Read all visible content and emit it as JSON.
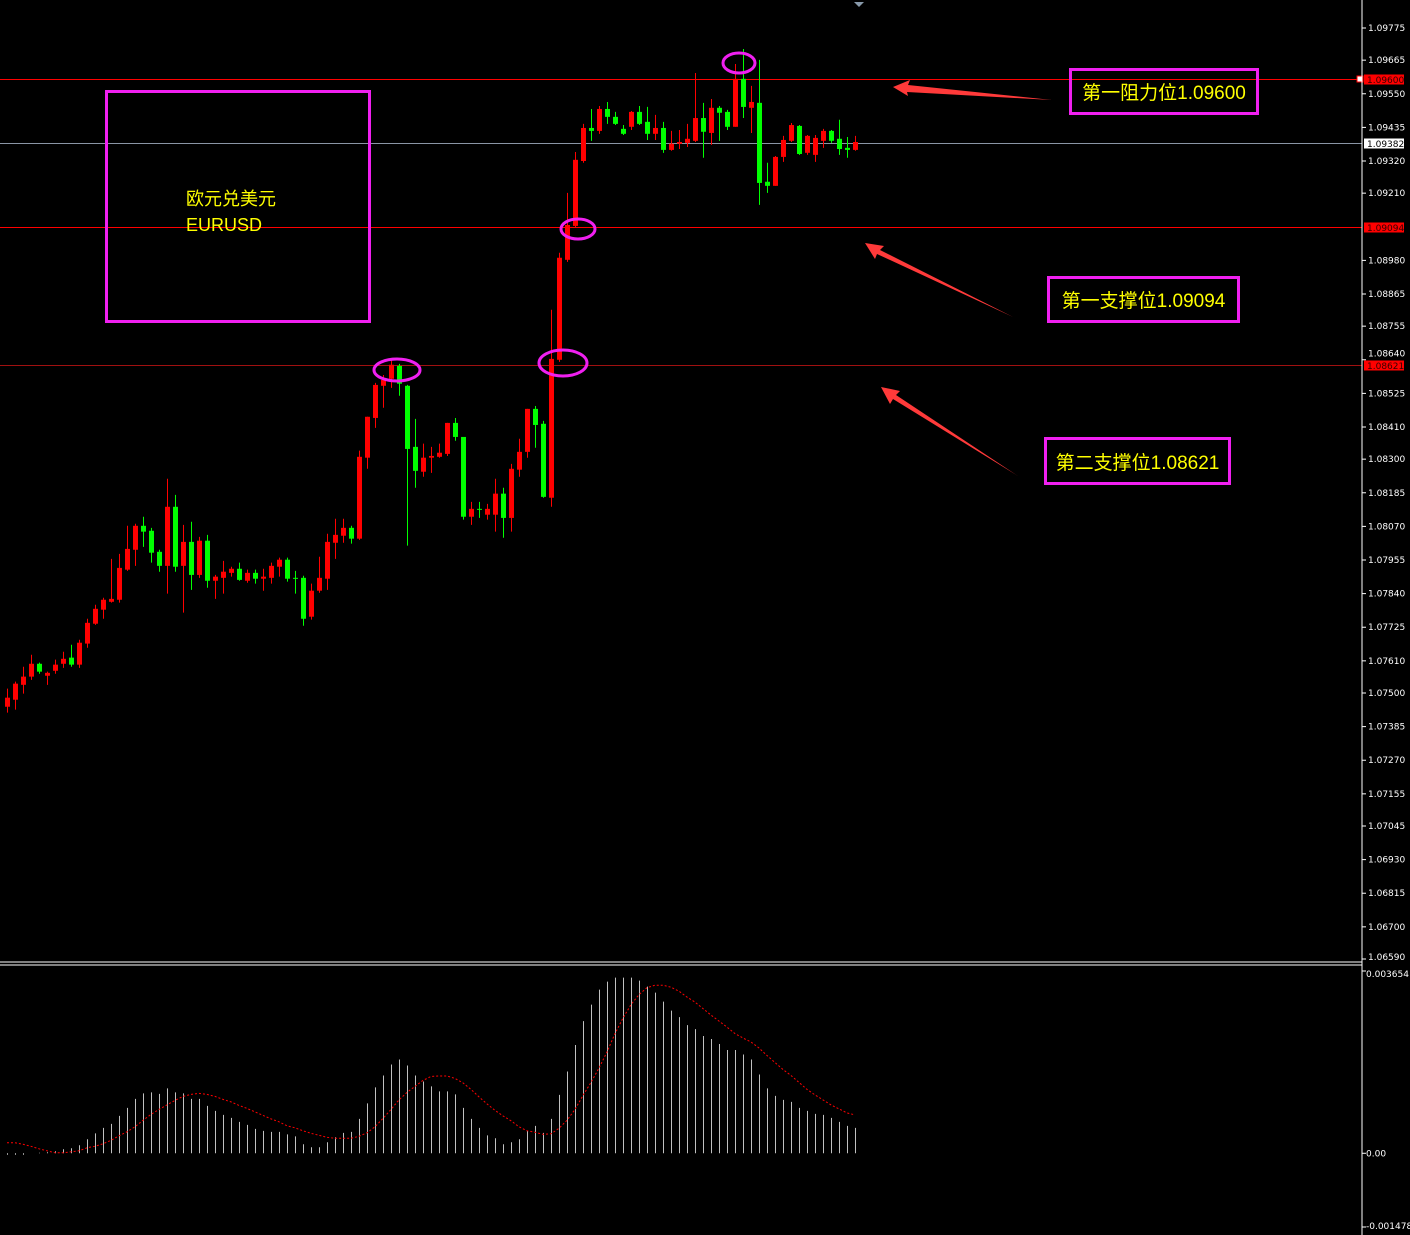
{
  "symbol": {
    "name_cn": "欧元兑美元",
    "name": "EURUSD"
  },
  "annotations": [
    {
      "text": "第一阻力位1.09600",
      "level": 1.096
    },
    {
      "text": "第一支撑位1.09094",
      "level": 1.09094
    },
    {
      "text": "第二支撑位1.08621",
      "level": 1.08621
    }
  ],
  "price_lines": {
    "bid": {
      "label": "1.09382",
      "value": 1.09382
    },
    "resistance1": {
      "label": "1.09600",
      "value": 1.096
    },
    "support1": {
      "label": "1.09094",
      "value": 1.09094
    },
    "support2": {
      "label": "1.08621",
      "value": 1.08621
    }
  },
  "colors": {
    "up": "#ff0000",
    "down": "#00ff00",
    "background": "#000000",
    "annotation_box": "#f020f0",
    "annotation_text": "#ffff00",
    "arrow": "#ff3a3a",
    "macd_hist": "#c0c0c0",
    "macd_signal": "#ff0000"
  },
  "chart_data": [
    {
      "type": "candlestick",
      "ylim": [
        1.0659,
        1.09775
      ],
      "y_ticks": [
        "1.09775",
        "1.09665",
        "1.09550",
        "1.09435",
        "1.09320",
        "1.09210",
        "1.08980",
        "1.08865",
        "1.08755",
        "1.08640",
        "1.08525",
        "1.08410",
        "1.08300",
        "1.08185",
        "1.08070",
        "1.07955",
        "1.07840",
        "1.07725",
        "1.07610",
        "1.07500",
        "1.07385",
        "1.07270",
        "1.07155",
        "1.07045",
        "1.06930",
        "1.06815",
        "1.06700",
        "1.06590"
      ],
      "y_tick_values": [
        1.09775,
        1.09665,
        1.0955,
        1.09435,
        1.0932,
        1.0921,
        1.0898,
        1.08865,
        1.08755,
        1.0864,
        1.08525,
        1.0841,
        1.083,
        1.08185,
        1.0807,
        1.07955,
        1.0784,
        1.07725,
        1.0761,
        1.075,
        1.07385,
        1.0727,
        1.07155,
        1.07045,
        1.0693,
        1.06815,
        1.067,
        1.0659
      ],
      "ohlc": [
        [
          1.07453,
          1.07515,
          1.07433,
          1.07484
        ],
        [
          1.07477,
          1.07539,
          1.07443,
          1.07532
        ],
        [
          1.07528,
          1.0759,
          1.07498,
          1.07556
        ],
        [
          1.07556,
          1.07631,
          1.07545,
          1.076
        ],
        [
          1.076,
          1.07604,
          1.07566,
          1.07573
        ],
        [
          1.07559,
          1.07573,
          1.07528,
          1.07569
        ],
        [
          1.07576,
          1.07614,
          1.07566,
          1.07597
        ],
        [
          1.076,
          1.07641,
          1.07586,
          1.07617
        ],
        [
          1.07621,
          1.07665,
          1.0759,
          1.07597
        ],
        [
          1.07597,
          1.07682,
          1.07586,
          1.07672
        ],
        [
          1.07669,
          1.07754,
          1.07655,
          1.0774
        ],
        [
          1.07737,
          1.07802,
          1.07733,
          1.07788
        ],
        [
          1.07785,
          1.07826,
          1.07754,
          1.07819
        ],
        [
          1.07812,
          1.07959,
          1.07809,
          1.07822
        ],
        [
          1.07819,
          1.07976,
          1.07809,
          1.07928
        ],
        [
          1.07922,
          1.08072,
          1.07918,
          1.07993
        ],
        [
          1.0799,
          1.08079,
          1.07935,
          1.08072
        ],
        [
          1.08072,
          1.08103,
          1.08,
          1.08052
        ],
        [
          1.08055,
          1.08065,
          1.07946,
          1.0798
        ],
        [
          1.07983,
          1.0799,
          1.07915,
          1.07935
        ],
        [
          1.07935,
          1.08233,
          1.0784,
          1.08137
        ],
        [
          1.08137,
          1.08178,
          1.07915,
          1.07932
        ],
        [
          1.07935,
          1.08075,
          1.07775,
          1.08017
        ],
        [
          1.08017,
          1.08086,
          1.07853,
          1.07904
        ],
        [
          1.07904,
          1.08034,
          1.07894,
          1.08021
        ],
        [
          1.08021,
          1.08041,
          1.0786,
          1.07884
        ],
        [
          1.07884,
          1.07904,
          1.07822,
          1.07898
        ],
        [
          1.07894,
          1.07952,
          1.0784,
          1.07915
        ],
        [
          1.07911,
          1.07932,
          1.07898,
          1.07925
        ],
        [
          1.07925,
          1.07946,
          1.07884,
          1.07887
        ],
        [
          1.07884,
          1.07922,
          1.07877,
          1.07911
        ],
        [
          1.07911,
          1.07922,
          1.07874,
          1.07891
        ],
        [
          1.07891,
          1.07925,
          1.0785,
          1.07898
        ],
        [
          1.07894,
          1.07946,
          1.07874,
          1.07935
        ],
        [
          1.07932,
          1.07963,
          1.07898,
          1.07956
        ],
        [
          1.07956,
          1.07963,
          1.07881,
          1.07891
        ],
        [
          1.07894,
          1.07918,
          1.0784,
          1.07891
        ],
        [
          1.07894,
          1.07901,
          1.0773,
          1.07754
        ],
        [
          1.07761,
          1.07874,
          1.07751,
          1.0785
        ],
        [
          1.0785,
          1.07966,
          1.07843,
          1.07894
        ],
        [
          1.07891,
          1.08045,
          1.07853,
          1.08017
        ],
        [
          1.08014,
          1.08096,
          1.07959,
          1.08041
        ],
        [
          1.08038,
          1.08096,
          1.08014,
          1.08065
        ],
        [
          1.08065,
          1.08072,
          1.08011,
          1.08028
        ],
        [
          1.08028,
          1.08329,
          1.08024,
          1.08308
        ],
        [
          1.08305,
          1.08445,
          1.08267,
          1.08445
        ],
        [
          1.08441,
          1.08561,
          1.08407,
          1.08554
        ],
        [
          1.08551,
          1.08588,
          1.08476,
          1.08571
        ],
        [
          1.08575,
          1.0864,
          1.08544,
          1.08623
        ],
        [
          1.08619,
          1.08626,
          1.08517,
          1.08558
        ],
        [
          1.08551,
          1.08554,
          1.08004,
          1.08335
        ],
        [
          1.08342,
          1.08438,
          1.08202,
          1.0826
        ],
        [
          1.08257,
          1.08353,
          1.0824,
          1.08305
        ],
        [
          1.08305,
          1.08342,
          1.08253,
          1.08311
        ],
        [
          1.08308,
          1.08353,
          1.08305,
          1.08322
        ],
        [
          1.08318,
          1.08424,
          1.08311,
          1.08424
        ],
        [
          1.08424,
          1.08441,
          1.08363,
          1.08376
        ],
        [
          1.08376,
          1.08376,
          1.08093,
          1.08103
        ],
        [
          1.08103,
          1.08154,
          1.08075,
          1.0813
        ],
        [
          1.0813,
          1.08154,
          1.08099,
          1.08127
        ],
        [
          1.0811,
          1.08147,
          1.08093,
          1.0813
        ],
        [
          1.0811,
          1.08233,
          1.08052,
          1.08182
        ],
        [
          1.08182,
          1.08202,
          1.08031,
          1.08099
        ],
        [
          1.08099,
          1.08284,
          1.08052,
          1.08267
        ],
        [
          1.08264,
          1.0837,
          1.0824,
          1.08325
        ],
        [
          1.08325,
          1.08472,
          1.08305,
          1.08472
        ],
        [
          1.08472,
          1.08482,
          1.08339,
          1.08417
        ],
        [
          1.08421,
          1.08431,
          1.08168,
          1.08171
        ],
        [
          1.08168,
          1.08811,
          1.08137,
          1.08643
        ],
        [
          1.0864,
          1.09006,
          1.08633,
          1.08989
        ],
        [
          1.08982,
          1.09211,
          1.08975,
          1.09101
        ],
        [
          1.09098,
          1.09351,
          1.09091,
          1.09324
        ],
        [
          1.0932,
          1.09447,
          1.09314,
          1.09433
        ],
        [
          1.09433,
          1.09498,
          1.09389,
          1.09423
        ],
        [
          1.09423,
          1.09508,
          1.09413,
          1.09498
        ],
        [
          1.09498,
          1.09522,
          1.09447,
          1.09471
        ],
        [
          1.09471,
          1.09488,
          1.09443,
          1.09447
        ],
        [
          1.0943,
          1.09443,
          1.09409,
          1.09413
        ],
        [
          1.09437,
          1.09491,
          1.09426,
          1.09488
        ],
        [
          1.09488,
          1.09508,
          1.09443,
          1.09447
        ],
        [
          1.09454,
          1.09505,
          1.09392,
          1.09413
        ],
        [
          1.09413,
          1.09478,
          1.09392,
          1.09433
        ],
        [
          1.09433,
          1.09454,
          1.09348,
          1.09358
        ],
        [
          1.09358,
          1.09423,
          1.09355,
          1.09379
        ],
        [
          1.09379,
          1.09426,
          1.09361,
          1.09385
        ],
        [
          1.09382,
          1.09447,
          1.09368,
          1.09396
        ],
        [
          1.09389,
          1.09621,
          1.09385,
          1.09467
        ],
        [
          1.09467,
          1.09519,
          1.09331,
          1.0942
        ],
        [
          1.09416,
          1.09532,
          1.09375,
          1.09502
        ],
        [
          1.09502,
          1.09508,
          1.09389,
          1.09485
        ],
        [
          1.09488,
          1.09495,
          1.09426,
          1.09437
        ],
        [
          1.09437,
          1.09652,
          1.09437,
          1.09601
        ],
        [
          1.09601,
          1.09703,
          1.09467,
          1.09505
        ],
        [
          1.09502,
          1.09577,
          1.09416,
          1.09522
        ],
        [
          1.09519,
          1.09666,
          1.0917,
          1.09245
        ],
        [
          1.09249,
          1.09314,
          1.09211,
          1.09235
        ],
        [
          1.09235,
          1.09337,
          1.09235,
          1.09334
        ],
        [
          1.09334,
          1.09406,
          1.09317,
          1.09392
        ],
        [
          1.09389,
          1.0945,
          1.09385,
          1.09443
        ],
        [
          1.0944,
          1.09443,
          1.09341,
          1.09344
        ],
        [
          1.09348,
          1.09409,
          1.09341,
          1.09406
        ],
        [
          1.09341,
          1.09409,
          1.09317,
          1.09399
        ],
        [
          1.09389,
          1.0943,
          1.09365,
          1.09423
        ],
        [
          1.09423,
          1.09426,
          1.09382,
          1.09389
        ],
        [
          1.09396,
          1.09461,
          1.09341,
          1.09361
        ],
        [
          1.09365,
          1.09402,
          1.09331,
          1.09358
        ],
        [
          1.09358,
          1.09406,
          1.09355,
          1.09385
        ]
      ]
    },
    {
      "type": "bar+line",
      "ylim": [
        -0.001478,
        0.003654
      ],
      "y_ticks": [
        "0.003654",
        "0.00",
        "-0.001478"
      ],
      "histogram": [
        -3e-05,
        -3e-05,
        -3e-05,
        0.0,
        1e-05,
        2e-05,
        4e-05,
        8e-05,
        0.0001,
        0.00016,
        0.00028,
        0.0004,
        0.00051,
        0.00059,
        0.00075,
        0.00091,
        0.00109,
        0.0012,
        0.00122,
        0.00119,
        0.0013,
        0.00122,
        0.0012,
        0.00109,
        0.00109,
        0.00095,
        0.00085,
        0.00077,
        0.00071,
        0.00063,
        0.00057,
        0.00049,
        0.00045,
        0.00043,
        0.00043,
        0.00038,
        0.00034,
        0.00018,
        0.00012,
        0.00012,
        0.00022,
        0.00032,
        0.00041,
        0.00043,
        0.00069,
        0.001,
        0.00132,
        0.00156,
        0.00178,
        0.00188,
        0.00176,
        0.00156,
        0.00144,
        0.00134,
        0.00124,
        0.00124,
        0.00118,
        0.00091,
        0.00069,
        0.00051,
        0.00036,
        0.0003,
        0.00018,
        0.00022,
        0.00028,
        0.00045,
        0.00055,
        0.00041,
        0.00069,
        0.00117,
        0.00164,
        0.00217,
        0.00265,
        0.00298,
        0.00328,
        0.00344,
        0.00352,
        0.00352,
        0.00352,
        0.00346,
        0.00334,
        0.00322,
        0.00304,
        0.00286,
        0.00273,
        0.00257,
        0.00249,
        0.00235,
        0.00229,
        0.00219,
        0.00207,
        0.00207,
        0.00198,
        0.00188,
        0.00158,
        0.0013,
        0.00115,
        0.00107,
        0.00103,
        0.00091,
        0.00085,
        0.00079,
        0.00077,
        0.00071,
        0.00063,
        0.00055,
        0.00051
      ],
      "signal": [
        0.00021,
        0.00021,
        0.00018,
        0.00014,
        9e-05,
        5e-05,
        1e-05,
        1e-05,
        3e-05,
        5e-05,
        0.00011,
        0.00014,
        0.00019,
        0.00026,
        0.00035,
        0.00043,
        0.00053,
        0.00066,
        0.00078,
        0.00088,
        0.00097,
        0.00106,
        0.00114,
        0.00118,
        0.0012,
        0.00118,
        0.00114,
        0.00108,
        0.00103,
        0.00096,
        0.0009,
        0.00083,
        0.00076,
        0.00069,
        0.00063,
        0.00055,
        0.00051,
        0.00045,
        0.0004,
        0.00036,
        0.00032,
        0.0003,
        0.0003,
        0.0003,
        0.00034,
        0.00041,
        0.00053,
        0.0007,
        0.00088,
        0.00107,
        0.00122,
        0.00134,
        0.00146,
        0.00154,
        0.00155,
        0.00155,
        0.0015,
        0.00141,
        0.00128,
        0.00113,
        0.00099,
        0.00086,
        0.00075,
        0.00065,
        0.00053,
        0.00045,
        0.00042,
        0.00038,
        0.00039,
        0.0005,
        0.00066,
        0.00088,
        0.00116,
        0.00142,
        0.00171,
        0.00203,
        0.0024,
        0.00271,
        0.00298,
        0.00318,
        0.00332,
        0.00337,
        0.00337,
        0.00333,
        0.00325,
        0.00313,
        0.00303,
        0.0029,
        0.00277,
        0.00265,
        0.00253,
        0.0024,
        0.00231,
        0.00223,
        0.00211,
        0.00196,
        0.00182,
        0.00168,
        0.00156,
        0.00142,
        0.00128,
        0.00117,
        0.00107,
        0.00097,
        0.00089,
        0.00081,
        0.00077
      ]
    }
  ]
}
